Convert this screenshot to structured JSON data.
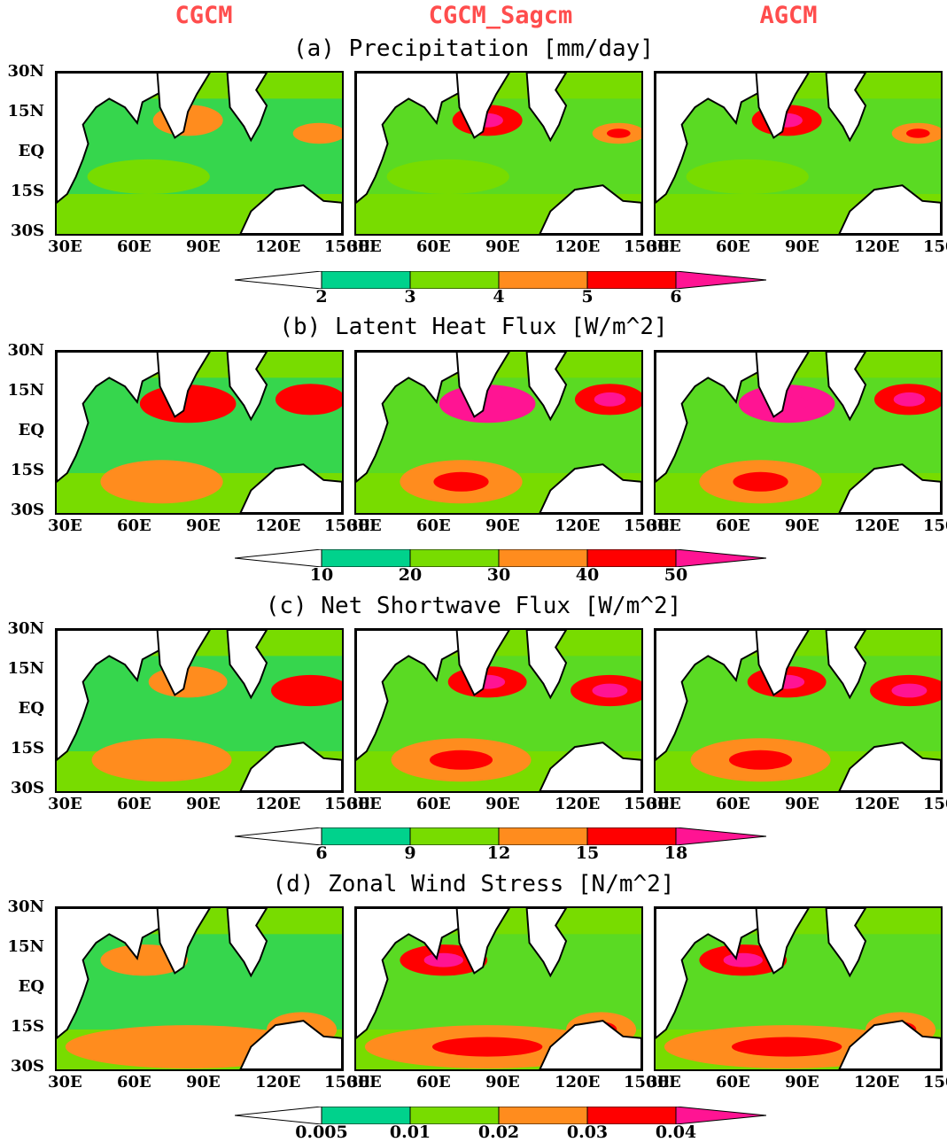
{
  "columns": [
    "CGCM",
    "CGCM_Sagcm",
    "AGCM"
  ],
  "rows": [
    {
      "title": "(a) Precipitation [mm/day]",
      "levels": [
        "2",
        "3",
        "4",
        "5",
        "6"
      ]
    },
    {
      "title": "(b) Latent Heat Flux [W/m^2]",
      "levels": [
        "10",
        "20",
        "30",
        "40",
        "50"
      ]
    },
    {
      "title": "(c) Net Shortwave Flux [W/m^2]",
      "levels": [
        "6",
        "9",
        "12",
        "15",
        "18"
      ]
    },
    {
      "title": "(d) Zonal Wind Stress [N/m^2]",
      "levels": [
        "0.005",
        "0.01",
        "0.02",
        "0.03",
        "0.04"
      ]
    }
  ],
  "lat_labels": [
    "30N",
    "15N",
    "EQ",
    "15S",
    "30S"
  ],
  "lon_labels": [
    "30E",
    "60E",
    "90E",
    "120E",
    "150E"
  ],
  "colors": {
    "c0": "#ffffff",
    "c1": "#00d28c",
    "c2": "#78dc00",
    "c3": "#ff8c1e",
    "c4": "#ff0000",
    "c5": "#ff1493",
    "title": "#ff4d4d"
  }
}
